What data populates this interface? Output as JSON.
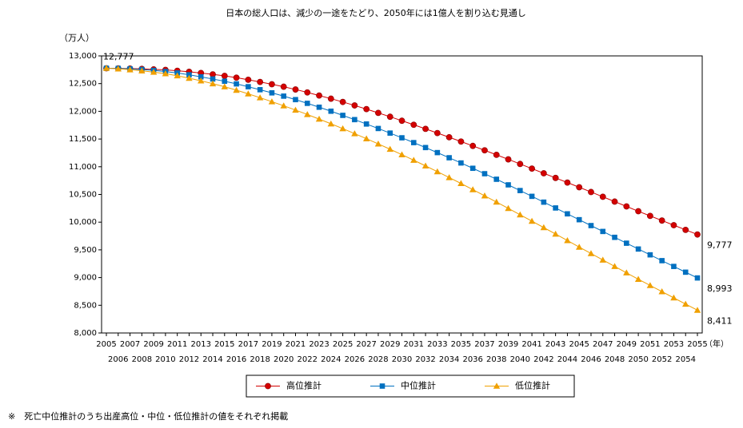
{
  "chart_data": {
    "type": "line",
    "title": "日本の総人口は、減少の一途をたどり、2050年には1億人を割り込む見通し",
    "y_label": "（万人）",
    "x_label": "（年）",
    "footnote": "※　死亡中位推計のうち出産高位・中位・低位推計の値をそれぞれ掲載",
    "x": [
      2005,
      2006,
      2007,
      2008,
      2009,
      2010,
      2011,
      2012,
      2013,
      2014,
      2015,
      2016,
      2017,
      2018,
      2019,
      2020,
      2021,
      2022,
      2023,
      2024,
      2025,
      2026,
      2027,
      2028,
      2029,
      2030,
      2031,
      2032,
      2033,
      2034,
      2035,
      2036,
      2037,
      2038,
      2039,
      2040,
      2041,
      2042,
      2043,
      2044,
      2045,
      2046,
      2047,
      2048,
      2049,
      2050,
      2051,
      2052,
      2053,
      2054,
      2055
    ],
    "xlim": [
      2005,
      2055
    ],
    "ylim": [
      8000,
      13000
    ],
    "yticks": [
      {
        "value": 8000,
        "label": "8,000"
      },
      {
        "value": 8500,
        "label": "8,500"
      },
      {
        "value": 9000,
        "label": "9,000"
      },
      {
        "value": 9500,
        "label": "9,500"
      },
      {
        "value": 10000,
        "label": "10,000"
      },
      {
        "value": 10500,
        "label": "10,500"
      },
      {
        "value": 11000,
        "label": "11,000"
      },
      {
        "value": 11500,
        "label": "11,500"
      },
      {
        "value": 12000,
        "label": "12,000"
      },
      {
        "value": 12500,
        "label": "12,500"
      },
      {
        "value": 13000,
        "label": "13,000"
      }
    ],
    "legend": "bottom",
    "series": [
      {
        "name": "高位推計",
        "color": "#d40000",
        "marker": "circle",
        "values": [
          12777,
          12775,
          12771,
          12765,
          12757,
          12747,
          12732,
          12713,
          12691,
          12667,
          12640,
          12607,
          12570,
          12530,
          12488,
          12444,
          12394,
          12341,
          12285,
          12228,
          12169,
          12106,
          12040,
          11972,
          11902,
          11830,
          11757,
          11683,
          11608,
          11532,
          11455,
          11376,
          11296,
          11215,
          11133,
          11050,
          10966,
          10882,
          10798,
          10714,
          10630,
          10544,
          10458,
          10371,
          10284,
          10197,
          10113,
          10029,
          9945,
          9861,
          9777
        ],
        "value_labels": [
          "12,777",
          null,
          null,
          null,
          null,
          null,
          null,
          null,
          null,
          null,
          null,
          null,
          null,
          null,
          null,
          null,
          null,
          null,
          null,
          null,
          null,
          null,
          null,
          null,
          null,
          null,
          null,
          null,
          null,
          null,
          null,
          null,
          null,
          null,
          null,
          null,
          null,
          null,
          null,
          null,
          null,
          null,
          null,
          null,
          null,
          null,
          null,
          null,
          null,
          null,
          "9,777"
        ]
      },
      {
        "name": "中位推計",
        "color": "#0070c0",
        "marker": "square",
        "values": [
          12777,
          12774,
          12766,
          12754,
          12738,
          12718,
          12692,
          12659,
          12622,
          12583,
          12543,
          12495,
          12444,
          12390,
          12333,
          12274,
          12211,
          12144,
          12074,
          12002,
          11927,
          11850,
          11771,
          11690,
          11607,
          11522,
          11435,
          11346,
          11255,
          11162,
          11068,
          10972,
          10874,
          10774,
          10673,
          10570,
          10466,
          10361,
          10256,
          10150,
          10044,
          9938,
          9832,
          9726,
          9620,
          9515,
          9410,
          9305,
          9201,
          9097,
          8993
        ],
        "value_labels": [
          null,
          null,
          null,
          null,
          null,
          null,
          null,
          null,
          null,
          null,
          null,
          null,
          null,
          null,
          null,
          null,
          null,
          null,
          null,
          null,
          null,
          null,
          null,
          null,
          null,
          null,
          null,
          null,
          null,
          null,
          null,
          null,
          null,
          null,
          null,
          null,
          null,
          null,
          null,
          null,
          null,
          null,
          null,
          null,
          null,
          null,
          null,
          null,
          null,
          null,
          "8,993"
        ]
      },
      {
        "name": "低位推計",
        "color": "#f0a000",
        "marker": "triangle",
        "values": [
          12777,
          12767,
          12751,
          12731,
          12707,
          12680,
          12642,
          12598,
          12550,
          12499,
          12444,
          12382,
          12316,
          12246,
          12174,
          12100,
          12023,
          11943,
          11860,
          11775,
          11688,
          11598,
          11506,
          11412,
          11316,
          11218,
          11118,
          11015,
          10911,
          10805,
          10698,
          10588,
          10476,
          10363,
          10249,
          10134,
          10018,
          9902,
          9785,
          9668,
          9550,
          9434,
          9318,
          9202,
          9086,
          8970,
          8858,
          8746,
          8634,
          8522,
          8411
        ],
        "value_labels": [
          null,
          null,
          null,
          null,
          null,
          null,
          null,
          null,
          null,
          null,
          null,
          null,
          null,
          null,
          null,
          null,
          null,
          null,
          null,
          null,
          null,
          null,
          null,
          null,
          null,
          null,
          null,
          null,
          null,
          null,
          null,
          null,
          null,
          null,
          null,
          null,
          null,
          null,
          null,
          null,
          null,
          null,
          null,
          null,
          null,
          null,
          null,
          null,
          null,
          null,
          "8,411"
        ]
      }
    ]
  }
}
